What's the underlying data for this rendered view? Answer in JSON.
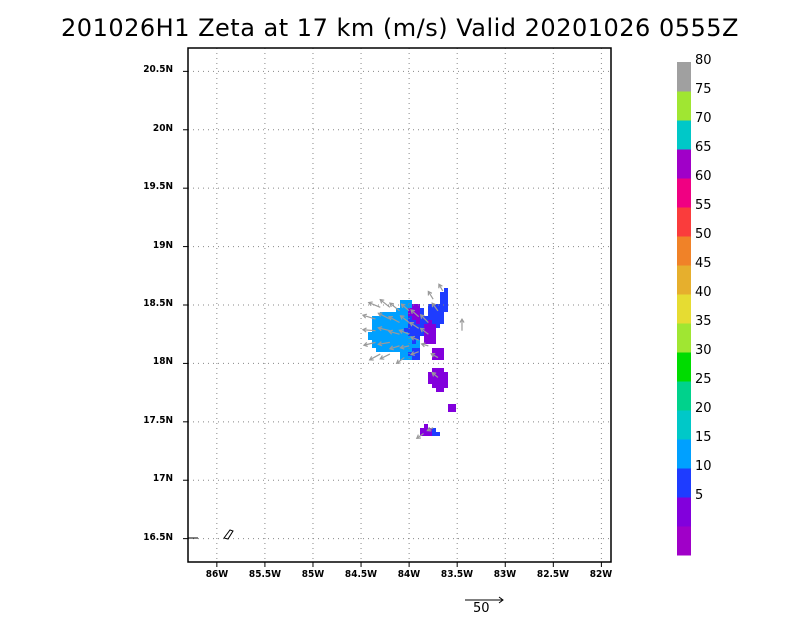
{
  "title": "201026H1  Zeta at 17 km (m/s) Valid 20201026  0555Z",
  "map": {
    "lat_range": [
      16.3,
      20.7
    ],
    "lon_range": [
      -86.3,
      -81.9
    ],
    "lat_ticks": [
      {
        "value": 16.5,
        "label": "16.5N"
      },
      {
        "value": 17,
        "label": "17N"
      },
      {
        "value": 17.5,
        "label": "17.5N"
      },
      {
        "value": 18,
        "label": "18N"
      },
      {
        "value": 18.5,
        "label": "18.5N"
      },
      {
        "value": 19,
        "label": "19N"
      },
      {
        "value": 19.5,
        "label": "19.5N"
      },
      {
        "value": 20,
        "label": "20N"
      },
      {
        "value": 20.5,
        "label": "20.5N"
      }
    ],
    "lon_ticks": [
      {
        "value": -86,
        "label": "86W"
      },
      {
        "value": -85.5,
        "label": "85.5W"
      },
      {
        "value": -85,
        "label": "85W"
      },
      {
        "value": -84.5,
        "label": "84.5W"
      },
      {
        "value": -84,
        "label": "84W"
      },
      {
        "value": -83.5,
        "label": "83.5W"
      },
      {
        "value": -83,
        "label": "83W"
      },
      {
        "value": -82.5,
        "label": "82.5W"
      },
      {
        "value": -82,
        "label": "82W"
      }
    ],
    "gridlines": "dotted",
    "wind_reference": {
      "label": "50",
      "units": "m/s"
    }
  },
  "colorbar": {
    "levels": [
      {
        "label": "",
        "color": "#a000c8"
      },
      {
        "label": "5",
        "color": "#8200dc"
      },
      {
        "label": "10",
        "color": "#1e3cff"
      },
      {
        "label": "15",
        "color": "#00a0ff"
      },
      {
        "label": "20",
        "color": "#00c8c8"
      },
      {
        "label": "25",
        "color": "#00d28c"
      },
      {
        "label": "30",
        "color": "#00dc00"
      },
      {
        "label": "35",
        "color": "#a0e632"
      },
      {
        "label": "40",
        "color": "#e6dc32"
      },
      {
        "label": "45",
        "color": "#e6af2d"
      },
      {
        "label": "50",
        "color": "#f08228"
      },
      {
        "label": "55",
        "color": "#fa3c3c"
      },
      {
        "label": "60",
        "color": "#f00082"
      },
      {
        "label": "65",
        "color": "#a000c8"
      },
      {
        "label": "70",
        "color": "#00c8c8"
      },
      {
        "label": "75",
        "color": "#a0e632"
      },
      {
        "label": "80",
        "color": "#a0a0a0"
      }
    ]
  },
  "radar_field": {
    "color_keys": {
      "purple": "#8200dc",
      "blue": "#1e3cff",
      "cyan": "#00a0ff"
    },
    "regions": [
      {
        "lon": -84.25,
        "lat": 18.28,
        "r_lon": 0.18,
        "r_lat": 0.18,
        "color": "cyan"
      },
      {
        "lon": -84.05,
        "lat": 18.3,
        "r_lon": 0.15,
        "r_lat": 0.25,
        "color": "cyan"
      },
      {
        "lon": -83.95,
        "lat": 18.35,
        "r_lon": 0.1,
        "r_lat": 0.15,
        "color": "blue"
      },
      {
        "lon": -83.75,
        "lat": 18.42,
        "r_lon": 0.1,
        "r_lat": 0.12,
        "color": "blue"
      },
      {
        "lon": -83.65,
        "lat": 18.55,
        "r_lon": 0.05,
        "r_lat": 0.1,
        "color": "blue"
      },
      {
        "lon": -83.95,
        "lat": 18.45,
        "r_lon": 0.06,
        "r_lat": 0.08,
        "color": "purple"
      },
      {
        "lon": -83.8,
        "lat": 18.28,
        "r_lon": 0.07,
        "r_lat": 0.1,
        "color": "purple"
      },
      {
        "lon": -83.72,
        "lat": 18.1,
        "r_lon": 0.08,
        "r_lat": 0.06,
        "color": "purple"
      },
      {
        "lon": -83.72,
        "lat": 17.88,
        "r_lon": 0.1,
        "r_lat": 0.1,
        "color": "purple"
      },
      {
        "lon": -83.57,
        "lat": 17.63,
        "r_lon": 0.04,
        "r_lat": 0.03,
        "color": "purple"
      },
      {
        "lon": -83.85,
        "lat": 17.43,
        "r_lon": 0.08,
        "r_lat": 0.05,
        "color": "purple"
      },
      {
        "lon": -83.95,
        "lat": 18.1,
        "r_lon": 0.06,
        "r_lat": 0.05,
        "color": "blue"
      },
      {
        "lon": -83.75,
        "lat": 17.42,
        "r_lon": 0.04,
        "r_lat": 0.03,
        "color": "blue"
      }
    ],
    "wind_vectors": [
      {
        "lon": -84.3,
        "lat": 18.48,
        "u": -0.12,
        "v": 0.05
      },
      {
        "lon": -84.35,
        "lat": 18.38,
        "u": -0.13,
        "v": 0.04
      },
      {
        "lon": -84.35,
        "lat": 18.28,
        "u": -0.13,
        "v": 0.01
      },
      {
        "lon": -84.35,
        "lat": 18.18,
        "u": -0.12,
        "v": -0.03
      },
      {
        "lon": -84.3,
        "lat": 18.08,
        "u": -0.11,
        "v": -0.06
      },
      {
        "lon": -84.2,
        "lat": 18.48,
        "u": -0.1,
        "v": 0.08
      },
      {
        "lon": -84.2,
        "lat": 18.38,
        "u": -0.12,
        "v": 0.06
      },
      {
        "lon": -84.2,
        "lat": 18.28,
        "u": -0.12,
        "v": 0.03
      },
      {
        "lon": -84.2,
        "lat": 18.18,
        "u": -0.12,
        "v": -0.02
      },
      {
        "lon": -84.2,
        "lat": 18.08,
        "u": -0.1,
        "v": -0.05
      },
      {
        "lon": -84.1,
        "lat": 18.45,
        "u": -0.1,
        "v": 0.08
      },
      {
        "lon": -84.1,
        "lat": 18.35,
        "u": -0.11,
        "v": 0.06
      },
      {
        "lon": -84.1,
        "lat": 18.25,
        "u": -0.11,
        "v": 0.03
      },
      {
        "lon": -84.1,
        "lat": 18.15,
        "u": -0.1,
        "v": -0.03
      },
      {
        "lon": -84.05,
        "lat": 18.05,
        "u": -0.08,
        "v": -0.06
      },
      {
        "lon": -84.0,
        "lat": 18.45,
        "u": -0.08,
        "v": 0.07
      },
      {
        "lon": -84.0,
        "lat": 18.35,
        "u": -0.09,
        "v": 0.07
      },
      {
        "lon": -84.0,
        "lat": 18.25,
        "u": -0.1,
        "v": 0.04
      },
      {
        "lon": -84.0,
        "lat": 18.15,
        "u": -0.09,
        "v": -0.02
      },
      {
        "lon": -83.9,
        "lat": 18.4,
        "u": -0.08,
        "v": 0.07
      },
      {
        "lon": -83.9,
        "lat": 18.3,
        "u": -0.09,
        "v": 0.06
      },
      {
        "lon": -83.9,
        "lat": 18.2,
        "u": -0.08,
        "v": 0.03
      },
      {
        "lon": -83.9,
        "lat": 18.1,
        "u": -0.08,
        "v": -0.03
      },
      {
        "lon": -83.8,
        "lat": 18.35,
        "u": -0.08,
        "v": 0.08
      },
      {
        "lon": -83.8,
        "lat": 18.25,
        "u": -0.08,
        "v": 0.06
      },
      {
        "lon": -83.8,
        "lat": 18.15,
        "u": -0.07,
        "v": 0.02
      },
      {
        "lon": -83.75,
        "lat": 18.55,
        "u": -0.05,
        "v": 0.08
      },
      {
        "lon": -83.7,
        "lat": 18.45,
        "u": -0.06,
        "v": 0.08
      },
      {
        "lon": -83.7,
        "lat": 18.05,
        "u": -0.07,
        "v": 0.04
      },
      {
        "lon": -83.7,
        "lat": 17.88,
        "u": -0.06,
        "v": 0.05
      },
      {
        "lon": -83.65,
        "lat": 18.62,
        "u": -0.04,
        "v": 0.07
      },
      {
        "lon": -83.45,
        "lat": 18.28,
        "u": 0.0,
        "v": 0.12
      },
      {
        "lon": -83.85,
        "lat": 17.4,
        "u": -0.07,
        "v": -0.05
      },
      {
        "lon": -83.75,
        "lat": 17.45,
        "u": -0.06,
        "v": -0.03
      }
    ]
  }
}
